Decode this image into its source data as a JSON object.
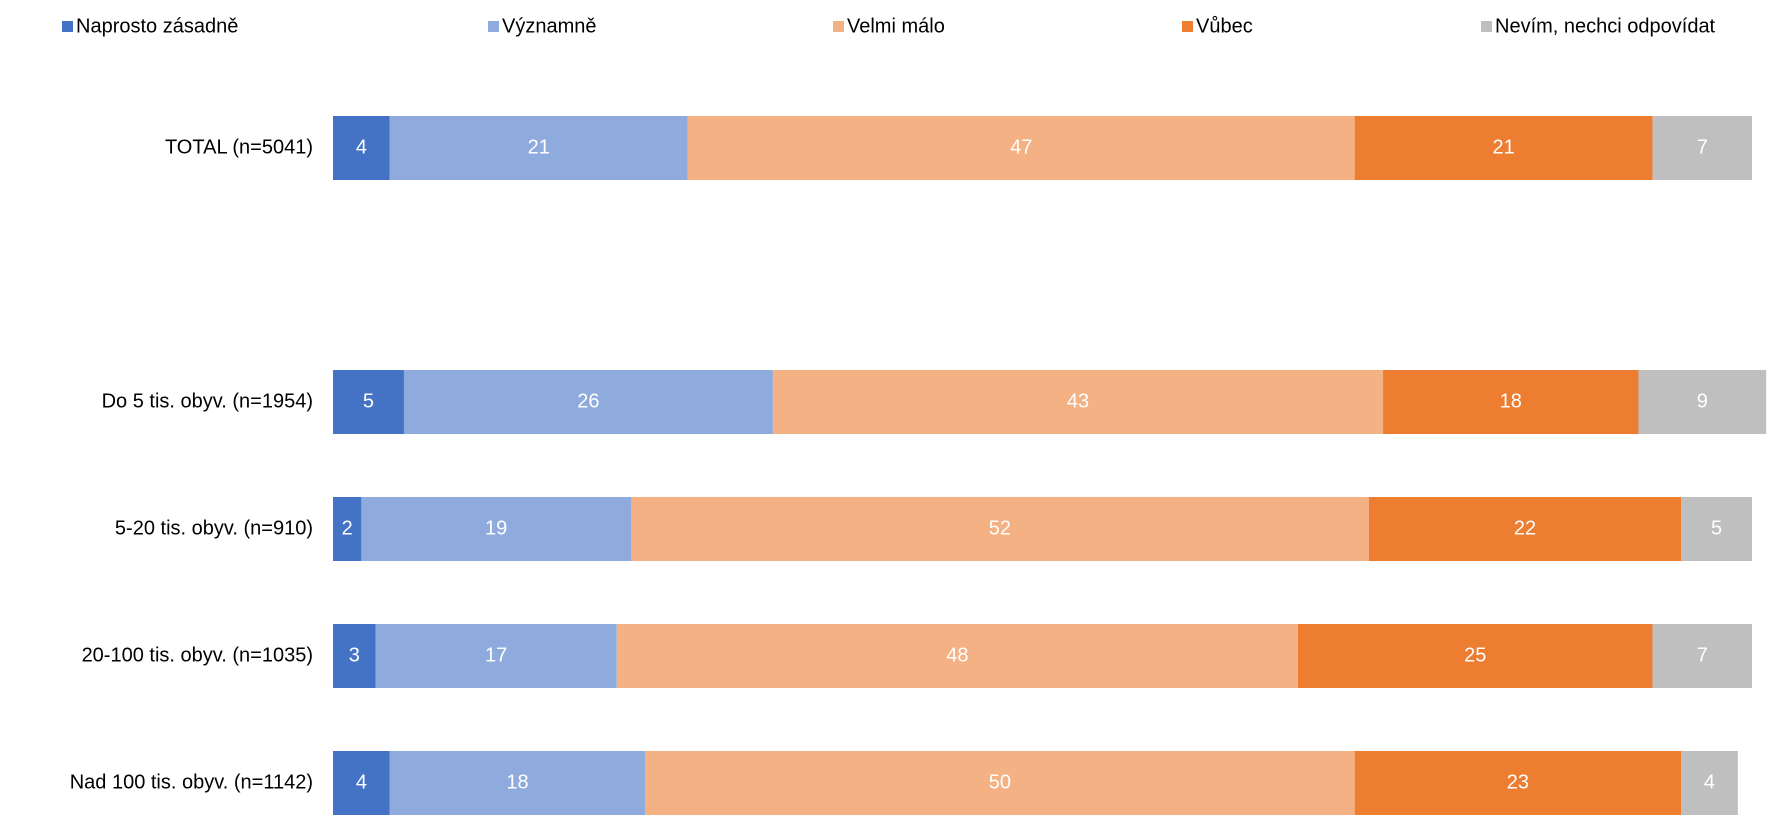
{
  "chart_data": {
    "type": "stacked-bar-horizontal",
    "categories": [
      "TOTAL (n=5041)",
      null,
      "Do 5 tis. obyv. (n=1954)",
      "5-20 tis. obyv. (n=910)",
      "20-100 tis. obyv. (n=1035)",
      "Nad 100 tis. obyv. (n=1142)"
    ],
    "series": [
      {
        "name": "Naprosto zásadně",
        "color": "#4472c4",
        "values": [
          4,
          null,
          5,
          2,
          3,
          4
        ]
      },
      {
        "name": "Významně",
        "color": "#8faadc",
        "values": [
          21,
          null,
          26,
          19,
          17,
          18
        ]
      },
      {
        "name": "Velmi málo",
        "color": "#f4b183",
        "values": [
          47,
          null,
          43,
          52,
          48,
          50
        ]
      },
      {
        "name": "Vůbec",
        "color": "#ed7d31",
        "values": [
          21,
          null,
          18,
          22,
          25,
          23
        ]
      },
      {
        "name": "Nevím, nechci odpovídat",
        "color": "#bfbfbf",
        "values": [
          7,
          null,
          9,
          5,
          7,
          4
        ]
      }
    ],
    "xlim": [
      0,
      100
    ],
    "legend": "top"
  }
}
